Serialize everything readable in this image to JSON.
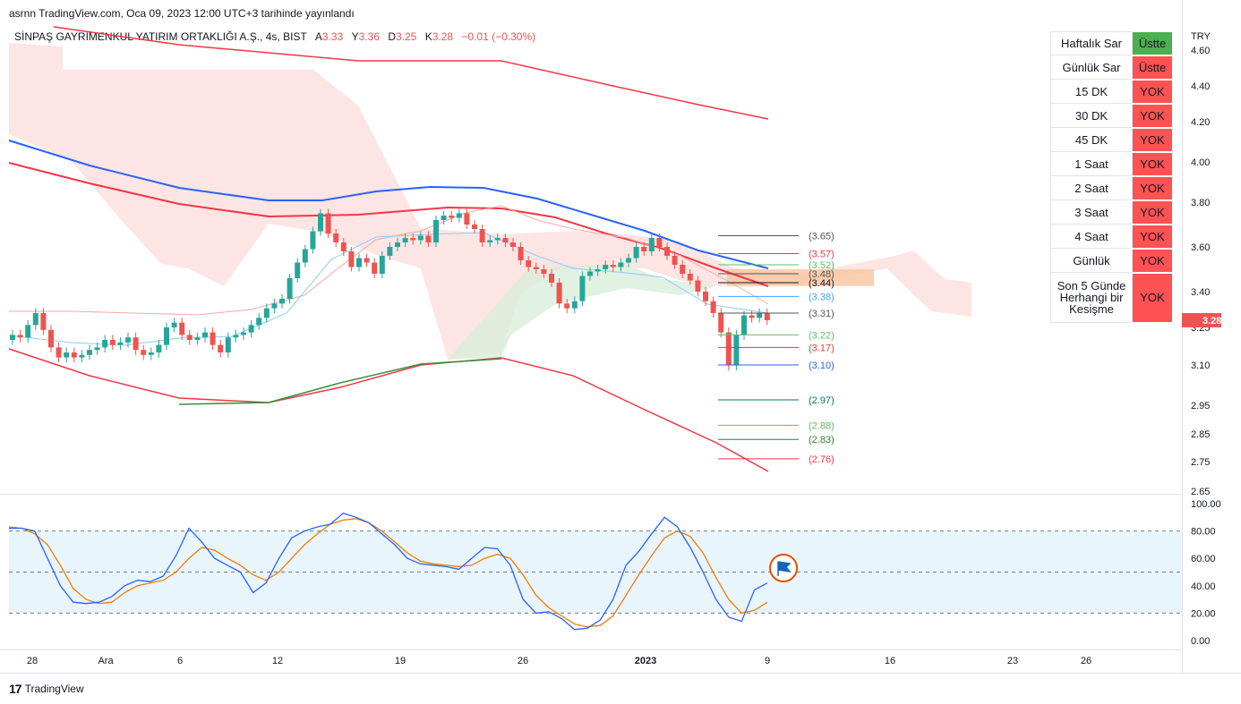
{
  "header": {
    "publish_line": "asrnn TradingView.com, Oca 09, 2023 12:00 UTC+3 tarihinde yayınlandı"
  },
  "legend": {
    "symbol": "SİNPAŞ GAYRİMENKUL YATIRIM ORTAKLIĞI A.Ş., 4s, BIST",
    "open_label": "A",
    "open": "3.33",
    "high_label": "Y",
    "high": "3.36",
    "low_label": "D",
    "low": "3.25",
    "close_label": "K",
    "close": "3.28",
    "change": "−0.01 (−0.30%)"
  },
  "currency": "TRY",
  "last_price": "3.28",
  "colors": {
    "up": "#26a69a",
    "down": "#ef5350",
    "ma_blue": "#2962ff",
    "ma_red": "#f23645",
    "ma_green": "#388e3c",
    "stoch_k": "#2962ff",
    "stoch_d": "#f57c00",
    "cloud": "#fde0de",
    "zone": "#f7c59f"
  },
  "price_axis": [
    "4.60",
    "4.40",
    "4.20",
    "4.00",
    "3.80",
    "3.60",
    "3.40",
    "3.25",
    "3.10",
    "2.95",
    "2.85",
    "2.75",
    "2.65"
  ],
  "osc_axis": [
    "100.00",
    "80.00",
    "60.00",
    "40.00",
    "20.00",
    "0.00"
  ],
  "time_axis": [
    "28",
    "Ara",
    "6",
    "12",
    "19",
    "26",
    "2023",
    "9",
    "16",
    "23",
    "26"
  ],
  "levels": [
    {
      "label": "(3.65)",
      "value": 3.65,
      "color": "#555555"
    },
    {
      "label": "(3.57)",
      "value": 3.57,
      "color": "#f23645"
    },
    {
      "label": "(3.52)",
      "value": 3.52,
      "color": "#66bb6a"
    },
    {
      "label": "(3.48)",
      "value": 3.48,
      "color": "#555555"
    },
    {
      "label": "(3.44)",
      "value": 3.44,
      "color": "#131722"
    },
    {
      "label": "(3.38)",
      "value": 3.38,
      "color": "#42a5f5"
    },
    {
      "label": "(3.31)",
      "value": 3.31,
      "color": "#555555"
    },
    {
      "label": "(3.22)",
      "value": 3.22,
      "color": "#66bb6a"
    },
    {
      "label": "(3.17)",
      "value": 3.17,
      "color": "#f23645"
    },
    {
      "label": "(3.10)",
      "value": 3.1,
      "color": "#2962ff"
    },
    {
      "label": "(2.97)",
      "value": 2.97,
      "color": "#00796b"
    },
    {
      "label": "(2.88)",
      "value": 2.88,
      "color": "#66bb6a"
    },
    {
      "label": "(2.83)",
      "value": 2.83,
      "color": "#2e7d32"
    },
    {
      "label": "(2.76)",
      "value": 2.76,
      "color": "#f23645"
    }
  ],
  "table": [
    {
      "label": "Haftalık Sar",
      "value": "Üstte",
      "state": "green"
    },
    {
      "label": "Günlük Sar",
      "value": "Üstte",
      "state": "red"
    },
    {
      "label": "15 DK",
      "value": "YOK",
      "state": "red"
    },
    {
      "label": "30 DK",
      "value": "YOK",
      "state": "red"
    },
    {
      "label": "45 DK",
      "value": "YOK",
      "state": "red"
    },
    {
      "label": "1 Saat",
      "value": "YOK",
      "state": "red"
    },
    {
      "label": "2 Saat",
      "value": "YOK",
      "state": "red"
    },
    {
      "label": "3 Saat",
      "value": "YOK",
      "state": "red"
    },
    {
      "label": "4 Saat",
      "value": "YOK",
      "state": "red"
    },
    {
      "label": "Günlük",
      "value": "YOK",
      "state": "red"
    },
    {
      "label": "Son 5 Günde Herhangi bir Kesişme",
      "value": "YOK",
      "state": "red"
    }
  ],
  "footer": {
    "brand": "TradingView"
  },
  "chart_data": {
    "type": "candlestick",
    "x_unit": "4-hour bar index",
    "ylim": [
      2.65,
      4.62
    ],
    "close": [
      3.22,
      3.21,
      3.26,
      3.31,
      3.24,
      3.17,
      3.13,
      3.15,
      3.13,
      3.14,
      3.16,
      3.17,
      3.2,
      3.18,
      3.19,
      3.21,
      3.16,
      3.14,
      3.15,
      3.18,
      3.25,
      3.27,
      3.22,
      3.2,
      3.21,
      3.23,
      3.18,
      3.15,
      3.21,
      3.22,
      3.23,
      3.26,
      3.29,
      3.33,
      3.35,
      3.37,
      3.46,
      3.53,
      3.59,
      3.67,
      3.75,
      3.66,
      3.62,
      3.58,
      3.51,
      3.55,
      3.53,
      3.48,
      3.56,
      3.6,
      3.62,
      3.64,
      3.63,
      3.65,
      3.62,
      3.72,
      3.74,
      3.73,
      3.75,
      3.7,
      3.68,
      3.62,
      3.63,
      3.64,
      3.62,
      3.6,
      3.54,
      3.51,
      3.5,
      3.48,
      3.44,
      3.35,
      3.33,
      3.36,
      3.47,
      3.49,
      3.5,
      3.52,
      3.51,
      3.53,
      3.55,
      3.6,
      3.58,
      3.64,
      3.6,
      3.56,
      3.52,
      3.48,
      3.45,
      3.4,
      3.36,
      3.31,
      3.23,
      3.1,
      3.22,
      3.3,
      3.29,
      3.31,
      3.28
    ],
    "stoch_k": [
      82,
      82,
      80,
      60,
      40,
      28,
      27,
      28,
      32,
      40,
      44,
      43,
      47,
      62,
      82,
      72,
      60,
      55,
      50,
      35,
      42,
      60,
      75,
      80,
      83,
      85,
      93,
      90,
      86,
      78,
      70,
      60,
      56,
      55,
      54,
      52,
      60,
      68,
      67,
      55,
      30,
      20,
      21,
      16,
      8,
      9,
      15,
      30,
      55,
      65,
      78,
      90,
      83,
      68,
      50,
      30,
      17,
      14,
      37,
      42
    ],
    "stoch_d": [
      83,
      82,
      78,
      70,
      55,
      38,
      30,
      27,
      28,
      35,
      40,
      42,
      44,
      50,
      60,
      68,
      66,
      60,
      55,
      48,
      44,
      50,
      60,
      70,
      78,
      85,
      88,
      89,
      86,
      80,
      72,
      64,
      58,
      56,
      55,
      54,
      55,
      60,
      63,
      60,
      48,
      33,
      24,
      18,
      12,
      10,
      11,
      18,
      33,
      48,
      62,
      75,
      80,
      76,
      64,
      46,
      30,
      20,
      22,
      28
    ]
  }
}
